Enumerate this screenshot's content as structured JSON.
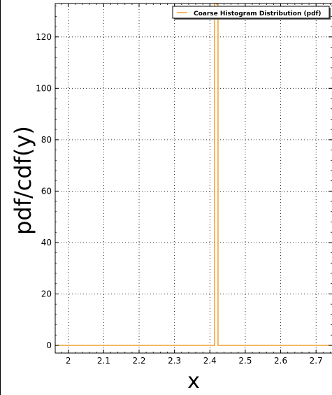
{
  "chart_data": {
    "type": "line",
    "title": "",
    "xlabel": "x",
    "ylabel": "pdf/cdf(y)",
    "xlim": [
      1.963,
      2.745
    ],
    "ylim": [
      -3,
      133
    ],
    "x_ticks": [
      2,
      2.1,
      2.2,
      2.3,
      2.4,
      2.5,
      2.6,
      2.7
    ],
    "x_tick_labels": [
      "2",
      "2.1",
      "2.2",
      "2.3",
      "2.4",
      "2.5",
      "2.6",
      "2.7"
    ],
    "y_ticks": [
      0,
      20,
      40,
      60,
      80,
      100,
      120
    ],
    "y_tick_labels": [
      "0",
      "20",
      "40",
      "60",
      "80",
      "100",
      "120"
    ],
    "grid": true,
    "legend_position": "top-right",
    "series": [
      {
        "name": "Coarse Histogram Distribution (pdf)",
        "color": "#f0a030",
        "x": [
          1.963,
          2.413,
          2.413,
          2.423,
          2.423,
          2.745
        ],
        "y": [
          0,
          0,
          140,
          140,
          0,
          0
        ]
      }
    ]
  }
}
